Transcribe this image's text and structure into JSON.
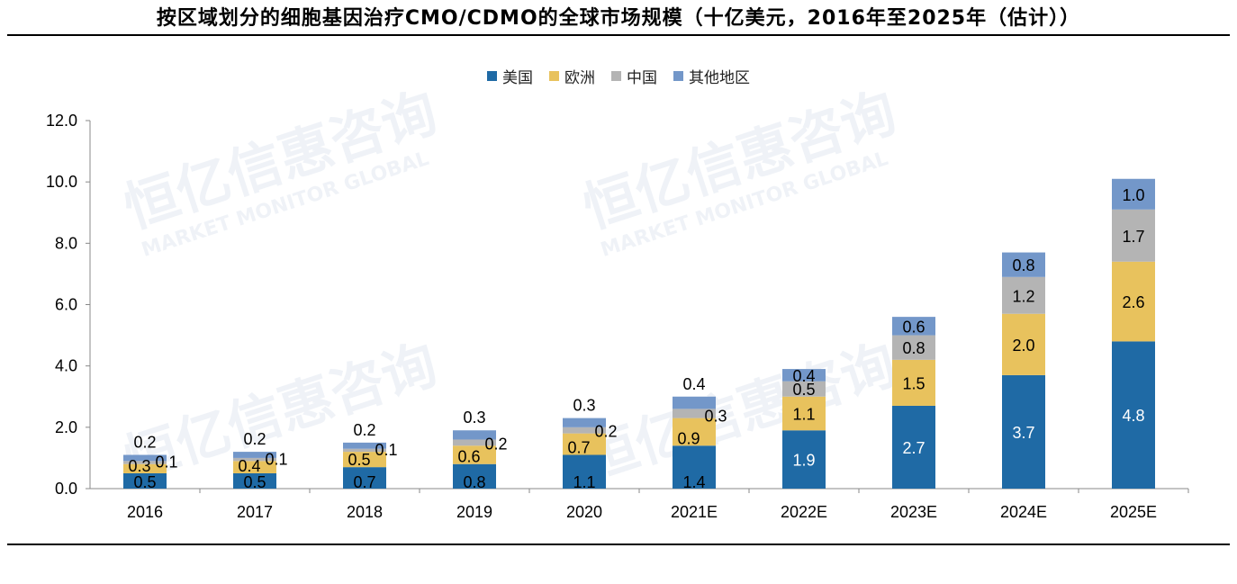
{
  "title": "按区域划分的细胞基因治疗CMO/CDMO的全球市场规模（十亿美元，2016年至2025年（估计））",
  "watermark": {
    "main": "恒亿信惠咨询",
    "sub": "MARKET MONITOR GLOBAL"
  },
  "colors": {
    "us": "#1f6aa5",
    "eu": "#e8c25d",
    "cn": "#b4b4b4",
    "other": "#7397c9"
  },
  "chart_data": {
    "type": "bar",
    "stacked": true,
    "categories": [
      "2016",
      "2017",
      "2018",
      "2019",
      "2020",
      "2021E",
      "2022E",
      "2023E",
      "2024E",
      "2025E"
    ],
    "series": [
      {
        "name": "美国",
        "values": [
          0.5,
          0.5,
          0.7,
          0.8,
          1.1,
          1.4,
          1.9,
          2.7,
          3.7,
          4.8
        ]
      },
      {
        "name": "欧洲",
        "values": [
          0.3,
          0.4,
          0.5,
          0.6,
          0.7,
          0.9,
          1.1,
          1.5,
          2.0,
          2.6
        ]
      },
      {
        "name": "中国",
        "values": [
          0.1,
          0.1,
          0.1,
          0.2,
          0.2,
          0.3,
          0.5,
          0.8,
          1.2,
          1.7
        ]
      },
      {
        "name": "其他地区",
        "values": [
          0.2,
          0.2,
          0.2,
          0.3,
          0.3,
          0.4,
          0.4,
          0.6,
          0.8,
          1.0
        ]
      }
    ],
    "ylim": [
      0,
      12
    ],
    "yticks": [
      "0.0",
      "2.0",
      "4.0",
      "6.0",
      "8.0",
      "10.0",
      "12.0"
    ],
    "legend_position": "top-center",
    "grid": false
  }
}
